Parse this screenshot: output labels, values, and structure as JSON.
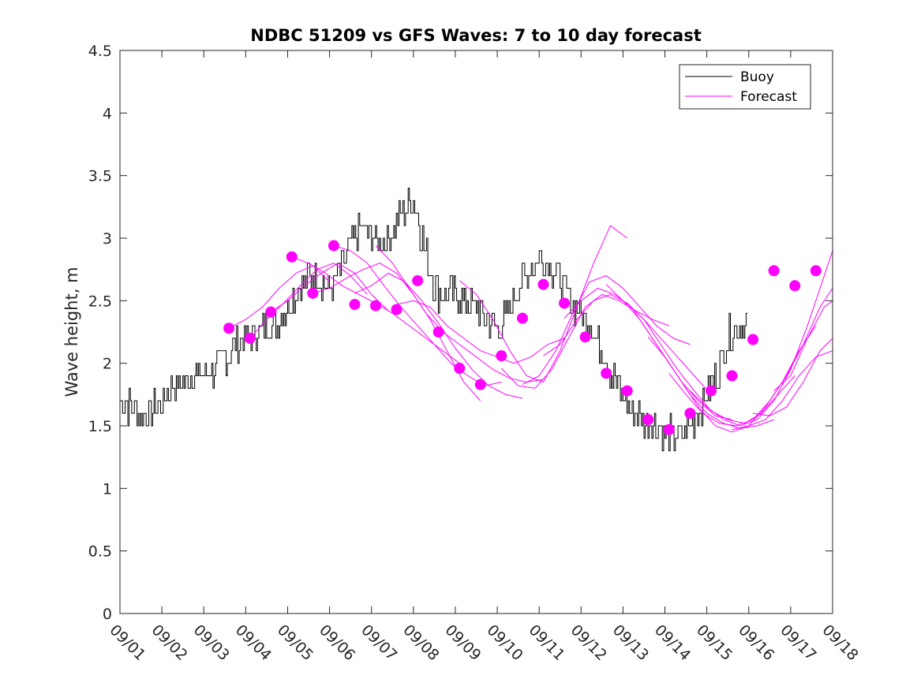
{
  "chart_data": {
    "type": "line",
    "title": "NDBC 51209 vs GFS Waves: 7 to 10 day forecast",
    "xlabel": "",
    "ylabel": "Wave height, m",
    "xlim": [
      0,
      17
    ],
    "ylim": [
      0,
      4.5
    ],
    "x_ticks": [
      "09/01",
      "09/02",
      "09/03",
      "09/04",
      "09/05",
      "09/06",
      "09/07",
      "09/08",
      "09/09",
      "09/10",
      "09/11",
      "09/12",
      "09/13",
      "09/14",
      "09/15",
      "09/16",
      "09/17",
      "09/18"
    ],
    "y_ticks": [
      "0",
      "0.5",
      "1",
      "1.5",
      "2",
      "2.5",
      "3",
      "3.5",
      "4",
      "4.5"
    ],
    "legend": {
      "position": "top-right",
      "entries": [
        {
          "label": "Buoy",
          "color": "#000000"
        },
        {
          "label": "Forecast",
          "color": "#ff00ff"
        }
      ]
    },
    "colors": {
      "buoy": "#000000",
      "forecast": "#ff00ff",
      "axis": "#262626"
    },
    "buoy": {
      "name": "Buoy",
      "x": [
        0.0,
        0.25,
        0.5,
        0.75,
        1.0,
        1.25,
        1.5,
        1.75,
        2.0,
        2.25,
        2.5,
        2.75,
        3.0,
        3.25,
        3.5,
        3.75,
        4.0,
        4.25,
        4.5,
        4.75,
        5.0,
        5.25,
        5.5,
        5.75,
        6.0,
        6.25,
        6.5,
        6.75,
        7.0,
        7.25,
        7.5,
        7.75,
        8.0,
        8.25,
        8.5,
        8.75,
        9.0,
        9.25,
        9.5,
        9.75,
        10.0,
        10.25,
        10.5,
        10.75,
        11.0,
        11.25,
        11.5,
        11.75,
        12.0,
        12.25,
        12.5,
        12.75,
        13.0,
        13.25,
        13.5,
        13.75,
        14.0,
        14.25,
        14.5,
        14.75,
        15.0,
        15.25,
        15.5,
        15.75,
        16.0,
        16.25,
        16.5,
        16.75,
        17.0
      ],
      "y": [
        1.7,
        1.65,
        1.6,
        1.62,
        1.7,
        1.8,
        1.85,
        1.9,
        1.9,
        1.95,
        2.05,
        2.15,
        2.2,
        2.25,
        2.3,
        2.35,
        2.45,
        2.6,
        2.7,
        2.7,
        2.55,
        2.75,
        2.95,
        3.1,
        3.0,
        2.95,
        3.05,
        3.2,
        3.3,
        2.95,
        2.6,
        2.55,
        2.55,
        2.5,
        2.45,
        2.35,
        2.25,
        2.4,
        2.6,
        2.75,
        2.85,
        2.8,
        2.65,
        2.5,
        2.4,
        2.3,
        2.1,
        1.9,
        1.75,
        1.6,
        1.55,
        1.5,
        1.45,
        1.42,
        1.45,
        1.6,
        1.75,
        1.95,
        2.2,
        2.3,
        2.35,
        null,
        null,
        null,
        null,
        null,
        null,
        null,
        null
      ]
    },
    "forecast_points": {
      "name": "Forecast",
      "x": [
        2.6,
        3.1,
        3.6,
        4.1,
        4.6,
        5.1,
        5.6,
        6.1,
        6.6,
        7.1,
        7.6,
        8.1,
        8.6,
        9.1,
        9.6,
        10.1,
        10.6,
        11.1,
        11.6,
        12.1,
        12.6,
        13.1,
        13.6,
        14.1,
        14.6,
        15.1,
        15.6,
        16.1,
        16.6
      ],
      "y": [
        2.28,
        2.2,
        2.41,
        2.85,
        2.56,
        2.94,
        2.47,
        2.46,
        2.43,
        2.66,
        2.25,
        1.96,
        1.83,
        2.06,
        2.36,
        2.63,
        2.48,
        2.21,
        1.92,
        1.78,
        1.55,
        1.47,
        1.6,
        1.78,
        1.9,
        2.19,
        2.74,
        2.62,
        2.74
      ]
    },
    "forecast_tracks": [
      {
        "x": [
          2.6,
          3.0,
          3.4,
          3.8,
          4.2,
          4.6,
          5.0
        ],
        "y": [
          2.28,
          2.35,
          2.45,
          2.6,
          2.72,
          2.78,
          2.65
        ]
      },
      {
        "x": [
          3.1,
          3.5,
          3.9,
          4.3,
          4.7,
          5.1,
          5.5,
          5.9
        ],
        "y": [
          2.2,
          2.35,
          2.48,
          2.62,
          2.75,
          2.8,
          2.7,
          2.55
        ]
      },
      {
        "x": [
          3.6,
          4.0,
          4.4,
          4.8,
          5.2,
          5.6,
          6.0,
          6.4
        ],
        "y": [
          2.41,
          2.5,
          2.62,
          2.72,
          2.8,
          2.72,
          2.55,
          2.42
        ]
      },
      {
        "x": [
          4.1,
          4.5,
          4.9,
          5.3,
          5.7,
          6.1,
          6.5,
          6.9,
          7.3,
          7.7,
          8.1
        ],
        "y": [
          2.85,
          2.8,
          2.72,
          2.62,
          2.55,
          2.48,
          2.4,
          2.3,
          2.2,
          2.1,
          2.0
        ]
      },
      {
        "x": [
          4.6,
          5.0,
          5.4,
          5.8,
          6.2,
          6.6,
          7.0,
          7.4,
          7.8,
          8.2,
          8.6
        ],
        "y": [
          2.56,
          2.6,
          2.68,
          2.75,
          2.8,
          2.72,
          2.55,
          2.35,
          2.1,
          1.85,
          1.7
        ]
      },
      {
        "x": [
          5.1,
          5.5,
          5.9,
          6.3,
          6.7,
          7.1,
          7.5,
          7.9,
          8.3,
          8.7,
          9.1
        ],
        "y": [
          2.94,
          2.9,
          2.8,
          2.62,
          2.45,
          2.3,
          2.15,
          2.0,
          1.9,
          1.82,
          1.85
        ]
      },
      {
        "x": [
          5.6,
          6.0,
          6.4,
          6.8,
          7.2,
          7.6,
          8.0,
          8.4,
          8.8,
          9.2,
          9.6
        ],
        "y": [
          2.56,
          2.62,
          2.72,
          2.65,
          2.5,
          2.32,
          2.12,
          1.95,
          1.82,
          1.75,
          1.72
        ]
      },
      {
        "x": [
          6.1,
          6.5,
          6.9,
          7.3,
          7.7,
          8.1,
          8.5,
          8.9,
          9.3,
          9.7,
          10.1
        ],
        "y": [
          2.94,
          2.8,
          2.6,
          2.4,
          2.25,
          2.15,
          2.05,
          1.95,
          1.88,
          1.85,
          1.87
        ]
      },
      {
        "x": [
          6.6,
          7.0,
          7.4,
          7.8,
          8.2,
          8.6,
          9.0,
          9.4,
          9.8,
          10.2,
          10.6
        ],
        "y": [
          2.47,
          2.5,
          2.45,
          2.3,
          2.2,
          2.1,
          2.05,
          2.0,
          2.05,
          2.15,
          2.2
        ]
      },
      {
        "x": [
          8.1,
          8.5,
          8.9,
          9.3,
          9.7,
          10.1,
          10.5,
          10.9,
          11.3,
          11.7,
          12.1
        ],
        "y": [
          2.66,
          2.55,
          2.35,
          2.1,
          1.9,
          1.85,
          2.1,
          2.45,
          2.8,
          3.1,
          3.0
        ]
      },
      {
        "x": [
          9.1,
          9.5,
          9.9,
          10.3,
          10.7,
          11.1,
          11.5,
          11.9,
          12.3,
          12.7,
          13.1
        ],
        "y": [
          1.96,
          1.82,
          1.8,
          1.95,
          2.2,
          2.45,
          2.55,
          2.5,
          2.42,
          2.35,
          2.3
        ]
      },
      {
        "x": [
          9.6,
          10.0,
          10.4,
          10.8,
          11.2,
          11.6,
          12.0,
          12.4,
          12.8,
          13.2,
          13.6
        ],
        "y": [
          1.83,
          1.9,
          2.1,
          2.4,
          2.65,
          2.7,
          2.6,
          2.45,
          2.3,
          2.2,
          2.15
        ]
      },
      {
        "x": [
          10.1,
          10.5,
          10.9,
          11.3,
          11.7,
          12.1,
          12.5,
          12.9,
          13.3,
          13.7,
          14.1
        ],
        "y": [
          2.06,
          2.15,
          2.35,
          2.5,
          2.55,
          2.48,
          2.35,
          2.2,
          2.05,
          1.9,
          1.75
        ]
      },
      {
        "x": [
          10.6,
          11.0,
          11.4,
          11.8,
          12.2,
          12.6,
          13.0,
          13.4,
          13.8,
          14.2,
          14.6
        ],
        "y": [
          2.36,
          2.5,
          2.6,
          2.55,
          2.45,
          2.25,
          2.05,
          1.85,
          1.7,
          1.58,
          1.55
        ]
      },
      {
        "x": [
          11.6,
          12.0,
          12.4,
          12.8,
          13.2,
          13.6,
          14.0,
          14.4,
          14.8,
          15.2,
          15.6
        ],
        "y": [
          2.63,
          2.5,
          2.35,
          2.15,
          1.95,
          1.75,
          1.6,
          1.52,
          1.48,
          1.5,
          1.55
        ]
      },
      {
        "x": [
          12.1,
          12.5,
          12.9,
          13.3,
          13.7,
          14.1,
          14.5,
          14.9,
          15.3,
          15.7,
          16.1
        ],
        "y": [
          2.48,
          2.35,
          2.15,
          1.95,
          1.78,
          1.62,
          1.55,
          1.52,
          1.6,
          1.75,
          1.9
        ]
      },
      {
        "x": [
          12.6,
          13.0,
          13.4,
          13.8,
          14.2,
          14.6,
          15.0,
          15.4,
          15.8,
          16.2,
          16.6
        ],
        "y": [
          2.21,
          2.05,
          1.85,
          1.65,
          1.5,
          1.45,
          1.5,
          1.65,
          1.85,
          2.1,
          2.3
        ]
      },
      {
        "x": [
          13.1,
          13.5,
          13.9,
          14.3,
          14.7,
          15.1,
          15.5,
          15.9,
          16.3,
          16.7,
          17.0
        ],
        "y": [
          1.92,
          1.75,
          1.6,
          1.52,
          1.5,
          1.55,
          1.7,
          1.9,
          2.15,
          2.45,
          2.6
        ]
      },
      {
        "x": [
          13.6,
          14.0,
          14.4,
          14.8,
          15.2,
          15.6,
          16.0,
          16.4,
          16.8,
          17.0
        ],
        "y": [
          1.78,
          1.65,
          1.55,
          1.5,
          1.55,
          1.7,
          1.95,
          2.3,
          2.7,
          2.9
        ]
      },
      {
        "x": [
          14.6,
          15.0,
          15.4,
          15.8,
          16.2,
          16.6,
          17.0
        ],
        "y": [
          1.47,
          1.5,
          1.55,
          1.7,
          1.9,
          2.05,
          2.1
        ]
      },
      {
        "x": [
          15.1,
          15.5,
          15.9,
          16.3,
          16.7,
          17.0
        ],
        "y": [
          1.6,
          1.58,
          1.65,
          1.85,
          2.1,
          2.2
        ]
      },
      {
        "x": [
          15.6,
          16.0,
          16.4,
          16.8,
          17.0
        ],
        "y": [
          1.78,
          1.9,
          2.2,
          2.45,
          2.5
        ]
      }
    ]
  }
}
